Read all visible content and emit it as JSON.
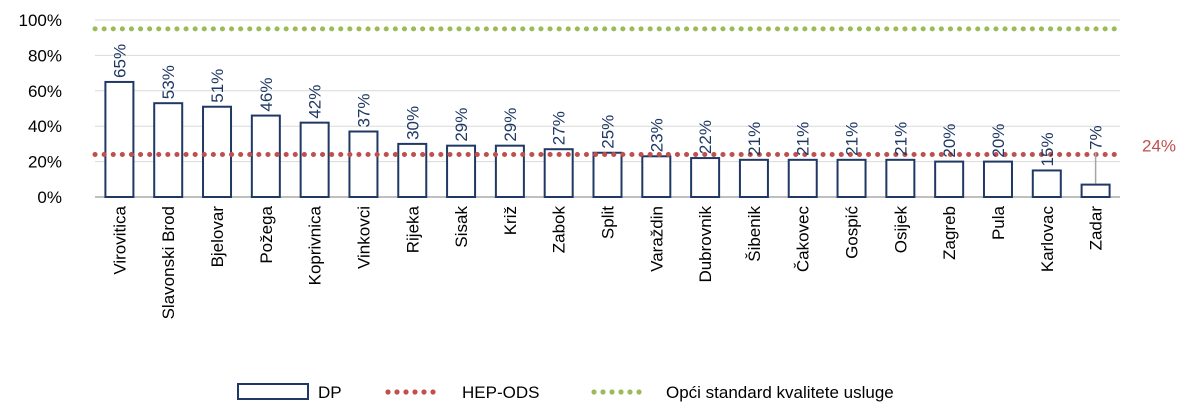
{
  "chart_data": {
    "type": "bar",
    "categories": [
      "Virovitica",
      "Slavonski Brod",
      "Bjelovar",
      "Požega",
      "Koprivnica",
      "Vinkovci",
      "Rijeka",
      "Sisak",
      "Križ",
      "Zabok",
      "Split",
      "Varaždin",
      "Dubrovnik",
      "Šibenik",
      "Čakovec",
      "Gospić",
      "Osijek",
      "Zagreb",
      "Pula",
      "Karlovac",
      "Zadar"
    ],
    "values": [
      65,
      53,
      51,
      46,
      42,
      37,
      30,
      29,
      29,
      27,
      25,
      23,
      22,
      21,
      21,
      21,
      21,
      20,
      20,
      15,
      7
    ],
    "value_labels": [
      "65%",
      "53%",
      "51%",
      "46%",
      "42%",
      "37%",
      "30%",
      "29%",
      "29%",
      "27%",
      "25%",
      "23%",
      "22%",
      "21%",
      "21%",
      "21%",
      "21%",
      "20%",
      "20%",
      "15%",
      "7%"
    ],
    "yticks": [
      "0%",
      "20%",
      "40%",
      "60%",
      "80%",
      "100%"
    ],
    "ylim": [
      0,
      100
    ],
    "grid": true,
    "series_name": "DP",
    "reference_lines": [
      {
        "name": "HEP-ODS",
        "value": 24,
        "label": "24%",
        "color": "#c0504d"
      },
      {
        "name": "Opći standard kvalitete usluge",
        "value": 95,
        "color": "#9bbb59"
      }
    ],
    "legend_position": "bottom",
    "colors": {
      "bar_stroke": "#1f3864",
      "value_label": "#1f3864",
      "grid": "#d9d9d9",
      "axis": "#7f7f7f",
      "text": "#000000"
    }
  }
}
